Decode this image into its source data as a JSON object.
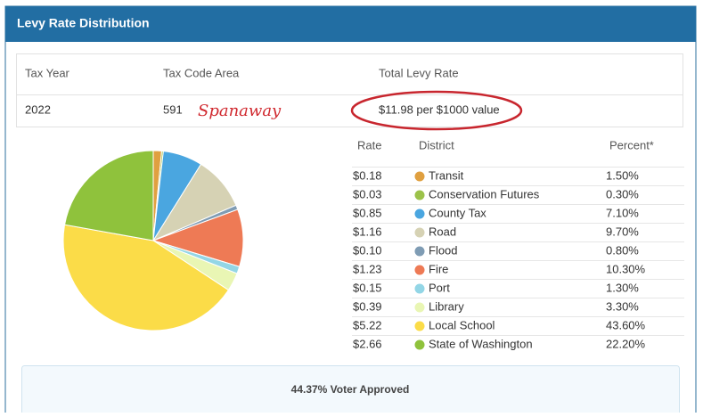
{
  "header": {
    "title": "Levy Rate Distribution"
  },
  "summary": {
    "columns": [
      "Tax Year",
      "Tax Code Area",
      "Total Levy Rate"
    ],
    "tax_year": "2022",
    "tax_code_area": "591",
    "annotation": "Spanaway",
    "total_levy_rate": "$11.98 per $1000 value"
  },
  "chart_data": {
    "type": "pie",
    "columns": [
      "Rate",
      "District",
      "Percent*"
    ],
    "categories": [
      "Transit",
      "Conservation Futures",
      "County Tax",
      "Road",
      "Flood",
      "Fire",
      "Port",
      "Library",
      "Local School",
      "State of Washington"
    ],
    "rates": [
      "$0.18",
      "$0.03",
      "$0.85",
      "$1.16",
      "$0.10",
      "$1.23",
      "$0.15",
      "$0.39",
      "$5.22",
      "$2.66"
    ],
    "values": [
      1.5,
      0.3,
      7.1,
      9.7,
      0.8,
      10.3,
      1.3,
      3.3,
      43.6,
      22.2
    ],
    "value_labels": [
      "1.50%",
      "0.30%",
      "7.10%",
      "9.70%",
      "0.80%",
      "10.30%",
      "1.30%",
      "3.30%",
      "43.60%",
      "22.20%"
    ],
    "colors": [
      "#e0a040",
      "#9cc24a",
      "#4aa6e0",
      "#d6d2b4",
      "#7f9cb4",
      "#ee7a55",
      "#93d6e6",
      "#e9f6b4",
      "#fbdc48",
      "#8fc23c"
    ]
  },
  "footer": {
    "voter_approved": "44.37% Voter Approved"
  }
}
